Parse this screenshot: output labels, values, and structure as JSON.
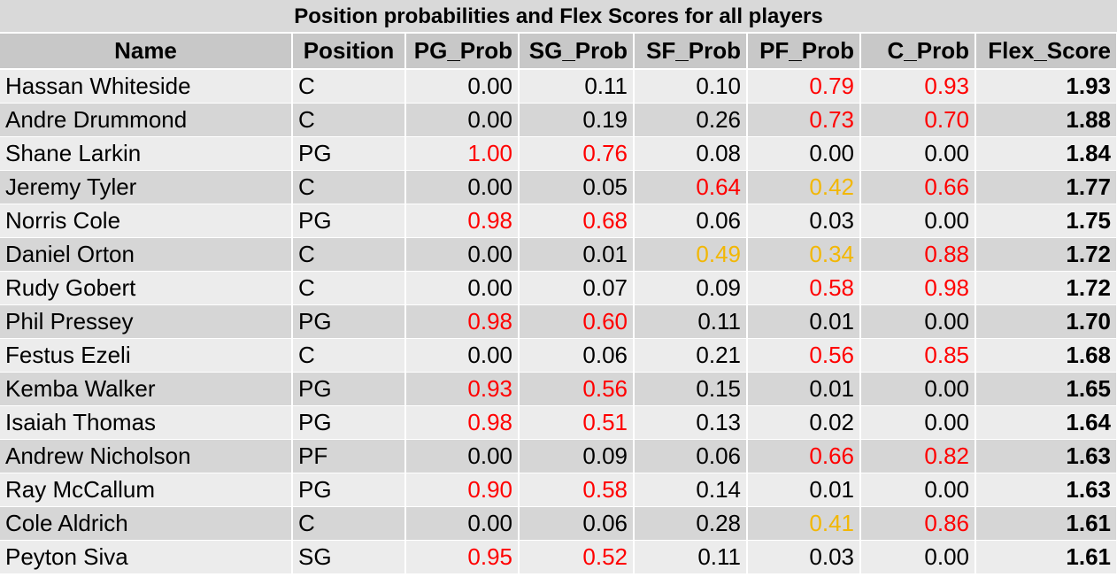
{
  "title": "Position probabilities and Flex Scores for all players",
  "headers": [
    "Name",
    "Position",
    "PG_Prob",
    "SG_Prob",
    "SF_Prob",
    "PF_Prob",
    "C_Prob",
    "Flex_Score"
  ],
  "colors": {
    "high": "#ff0000",
    "medium": "#f2b705",
    "normal": "#000000"
  },
  "rows": [
    {
      "name": "Hassan Whiteside",
      "position": "C",
      "cells": [
        {
          "v": "0.00",
          "c": ""
        },
        {
          "v": "0.11",
          "c": ""
        },
        {
          "v": "0.10",
          "c": ""
        },
        {
          "v": "0.79",
          "c": "red"
        },
        {
          "v": "0.93",
          "c": "red"
        }
      ],
      "flex": "1.93"
    },
    {
      "name": "Andre Drummond",
      "position": "C",
      "cells": [
        {
          "v": "0.00",
          "c": ""
        },
        {
          "v": "0.19",
          "c": ""
        },
        {
          "v": "0.26",
          "c": ""
        },
        {
          "v": "0.73",
          "c": "red"
        },
        {
          "v": "0.70",
          "c": "red"
        }
      ],
      "flex": "1.88"
    },
    {
      "name": "Shane Larkin",
      "position": "PG",
      "cells": [
        {
          "v": "1.00",
          "c": "red"
        },
        {
          "v": "0.76",
          "c": "red"
        },
        {
          "v": "0.08",
          "c": ""
        },
        {
          "v": "0.00",
          "c": ""
        },
        {
          "v": "0.00",
          "c": ""
        }
      ],
      "flex": "1.84"
    },
    {
      "name": "Jeremy Tyler",
      "position": "C",
      "cells": [
        {
          "v": "0.00",
          "c": ""
        },
        {
          "v": "0.05",
          "c": ""
        },
        {
          "v": "0.64",
          "c": "red"
        },
        {
          "v": "0.42",
          "c": "yellow"
        },
        {
          "v": "0.66",
          "c": "red"
        }
      ],
      "flex": "1.77"
    },
    {
      "name": "Norris Cole",
      "position": "PG",
      "cells": [
        {
          "v": "0.98",
          "c": "red"
        },
        {
          "v": "0.68",
          "c": "red"
        },
        {
          "v": "0.06",
          "c": ""
        },
        {
          "v": "0.03",
          "c": ""
        },
        {
          "v": "0.00",
          "c": ""
        }
      ],
      "flex": "1.75"
    },
    {
      "name": "Daniel Orton",
      "position": "C",
      "cells": [
        {
          "v": "0.00",
          "c": ""
        },
        {
          "v": "0.01",
          "c": ""
        },
        {
          "v": "0.49",
          "c": "yellow"
        },
        {
          "v": "0.34",
          "c": "yellow"
        },
        {
          "v": "0.88",
          "c": "red"
        }
      ],
      "flex": "1.72"
    },
    {
      "name": "Rudy Gobert",
      "position": "C",
      "cells": [
        {
          "v": "0.00",
          "c": ""
        },
        {
          "v": "0.07",
          "c": ""
        },
        {
          "v": "0.09",
          "c": ""
        },
        {
          "v": "0.58",
          "c": "red"
        },
        {
          "v": "0.98",
          "c": "red"
        }
      ],
      "flex": "1.72"
    },
    {
      "name": "Phil Pressey",
      "position": "PG",
      "cells": [
        {
          "v": "0.98",
          "c": "red"
        },
        {
          "v": "0.60",
          "c": "red"
        },
        {
          "v": "0.11",
          "c": ""
        },
        {
          "v": "0.01",
          "c": ""
        },
        {
          "v": "0.00",
          "c": ""
        }
      ],
      "flex": "1.70"
    },
    {
      "name": "Festus Ezeli",
      "position": "C",
      "cells": [
        {
          "v": "0.00",
          "c": ""
        },
        {
          "v": "0.06",
          "c": ""
        },
        {
          "v": "0.21",
          "c": ""
        },
        {
          "v": "0.56",
          "c": "red"
        },
        {
          "v": "0.85",
          "c": "red"
        }
      ],
      "flex": "1.68"
    },
    {
      "name": "Kemba Walker",
      "position": "PG",
      "cells": [
        {
          "v": "0.93",
          "c": "red"
        },
        {
          "v": "0.56",
          "c": "red"
        },
        {
          "v": "0.15",
          "c": ""
        },
        {
          "v": "0.01",
          "c": ""
        },
        {
          "v": "0.00",
          "c": ""
        }
      ],
      "flex": "1.65"
    },
    {
      "name": "Isaiah Thomas",
      "position": "PG",
      "cells": [
        {
          "v": "0.98",
          "c": "red"
        },
        {
          "v": "0.51",
          "c": "red"
        },
        {
          "v": "0.13",
          "c": ""
        },
        {
          "v": "0.02",
          "c": ""
        },
        {
          "v": "0.00",
          "c": ""
        }
      ],
      "flex": "1.64"
    },
    {
      "name": "Andrew Nicholson",
      "position": "PF",
      "cells": [
        {
          "v": "0.00",
          "c": ""
        },
        {
          "v": "0.09",
          "c": ""
        },
        {
          "v": "0.06",
          "c": ""
        },
        {
          "v": "0.66",
          "c": "red"
        },
        {
          "v": "0.82",
          "c": "red"
        }
      ],
      "flex": "1.63"
    },
    {
      "name": "Ray McCallum",
      "position": "PG",
      "cells": [
        {
          "v": "0.90",
          "c": "red"
        },
        {
          "v": "0.58",
          "c": "red"
        },
        {
          "v": "0.14",
          "c": ""
        },
        {
          "v": "0.01",
          "c": ""
        },
        {
          "v": "0.00",
          "c": ""
        }
      ],
      "flex": "1.63"
    },
    {
      "name": "Cole Aldrich",
      "position": "C",
      "cells": [
        {
          "v": "0.00",
          "c": ""
        },
        {
          "v": "0.06",
          "c": ""
        },
        {
          "v": "0.28",
          "c": ""
        },
        {
          "v": "0.41",
          "c": "yellow"
        },
        {
          "v": "0.86",
          "c": "red"
        }
      ],
      "flex": "1.61"
    },
    {
      "name": "Peyton Siva",
      "position": "SG",
      "cells": [
        {
          "v": "0.95",
          "c": "red"
        },
        {
          "v": "0.52",
          "c": "red"
        },
        {
          "v": "0.11",
          "c": ""
        },
        {
          "v": "0.03",
          "c": ""
        },
        {
          "v": "0.00",
          "c": ""
        }
      ],
      "flex": "1.61"
    }
  ]
}
